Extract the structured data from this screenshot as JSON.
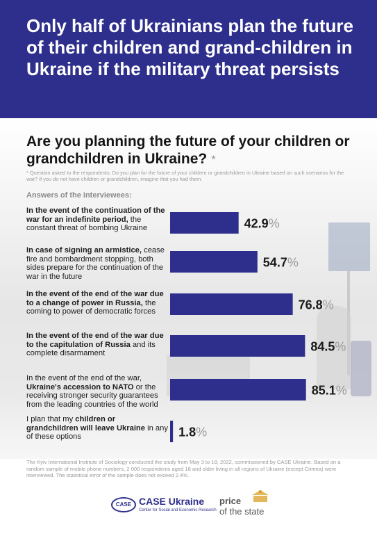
{
  "header": {
    "title": "Only half of Ukrainians plan the future of their children and grand-children in Ukraine if the military threat persists"
  },
  "question": {
    "text": "Are you planning the future of your children or grandchildren in Ukraine?",
    "star": "*",
    "note": "* Question asked to the respondents: Do you plan for the future of your children or grandchildren in Ukraine based on such scenarios for the war? If you do not have children or grandchildren, imagine that you had them."
  },
  "answers_heading": "Answers of the interviewees:",
  "chart_data": {
    "type": "bar",
    "orientation": "horizontal",
    "unit": "%",
    "xlim": [
      0,
      100
    ],
    "categories": [
      {
        "bold": "In the event of the continuation of the war for an indefinite period,",
        "rest": " the constant threat of bombing Ukraine"
      },
      {
        "bold": "In case of signing an armistice,",
        "rest": " cease fire and bombardment stopping, both sides prepare for the continuation of the war in the future"
      },
      {
        "bold": "In the event of the end of the war due to a change of power in Russia,",
        "rest": " the coming to power of democratic forces"
      },
      {
        "bold": "In the event of the end of the war due to the capitulation of Russia",
        "rest": " and its complete disarmament"
      },
      {
        "pre": "In the event of the end of the war, ",
        "bold": "Ukraine's accession to NATO",
        "rest": " or the receiving stronger security guarantees from the leading countries of the world"
      },
      {
        "pre": "I plan that my ",
        "bold": "children or grandchildren will leave Ukraine",
        "rest": " in any of these options"
      }
    ],
    "values": [
      42.9,
      54.7,
      76.8,
      84.5,
      85.1,
      1.8
    ],
    "labels": [
      "42.9",
      "54.7",
      "76.8",
      "84.5",
      "85.1",
      "1.8"
    ],
    "percent_sign": "%",
    "bar_color": "#2e2f8c"
  },
  "footnote": "The Kyiv International Institute of Sociology conducted the study from May 3 to 18, 2022, commissioned by CASE Ukraine. Based on a random sample of mobile phone numbers, 2 000 respondents aged 18 and older living in all regions of Ukraine (except Crimea) were interviewed. The statistical error of the sample does not exceed 2.4%.",
  "logos": {
    "case_emblem": "CASE",
    "case_name": "CASE Ukraine",
    "case_tagline": "Center for Social and Economic Research",
    "pots_line1": "price",
    "pots_line2": "of the state"
  },
  "colors": {
    "header_bg": "#2e2f8c",
    "accent": "#2e2f8c",
    "muted": "#9a9a9a"
  }
}
